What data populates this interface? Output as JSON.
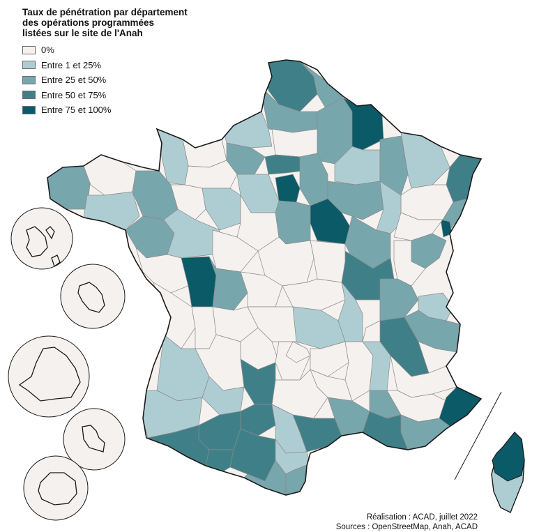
{
  "title_lines": [
    "Taux de pénétration par département",
    "des opérations programmées",
    "listées sur le site de l'Anah"
  ],
  "legend": [
    {
      "label": "0%",
      "color": "#f5f1ee"
    },
    {
      "label": "Entre 1 et 25%",
      "color": "#aecdd3"
    },
    {
      "label": "Entre 25 et 50%",
      "color": "#78a6ad"
    },
    {
      "label": "Entre 50 et 75%",
      "color": "#3f8088"
    },
    {
      "label": "Entre 75 et 100%",
      "color": "#0b5a67"
    }
  ],
  "credits": {
    "realisation": "Réalisation : ACAD, juillet 2022",
    "sources": "Sources : OpenStreetMap, Anah, ACAD"
  }
}
